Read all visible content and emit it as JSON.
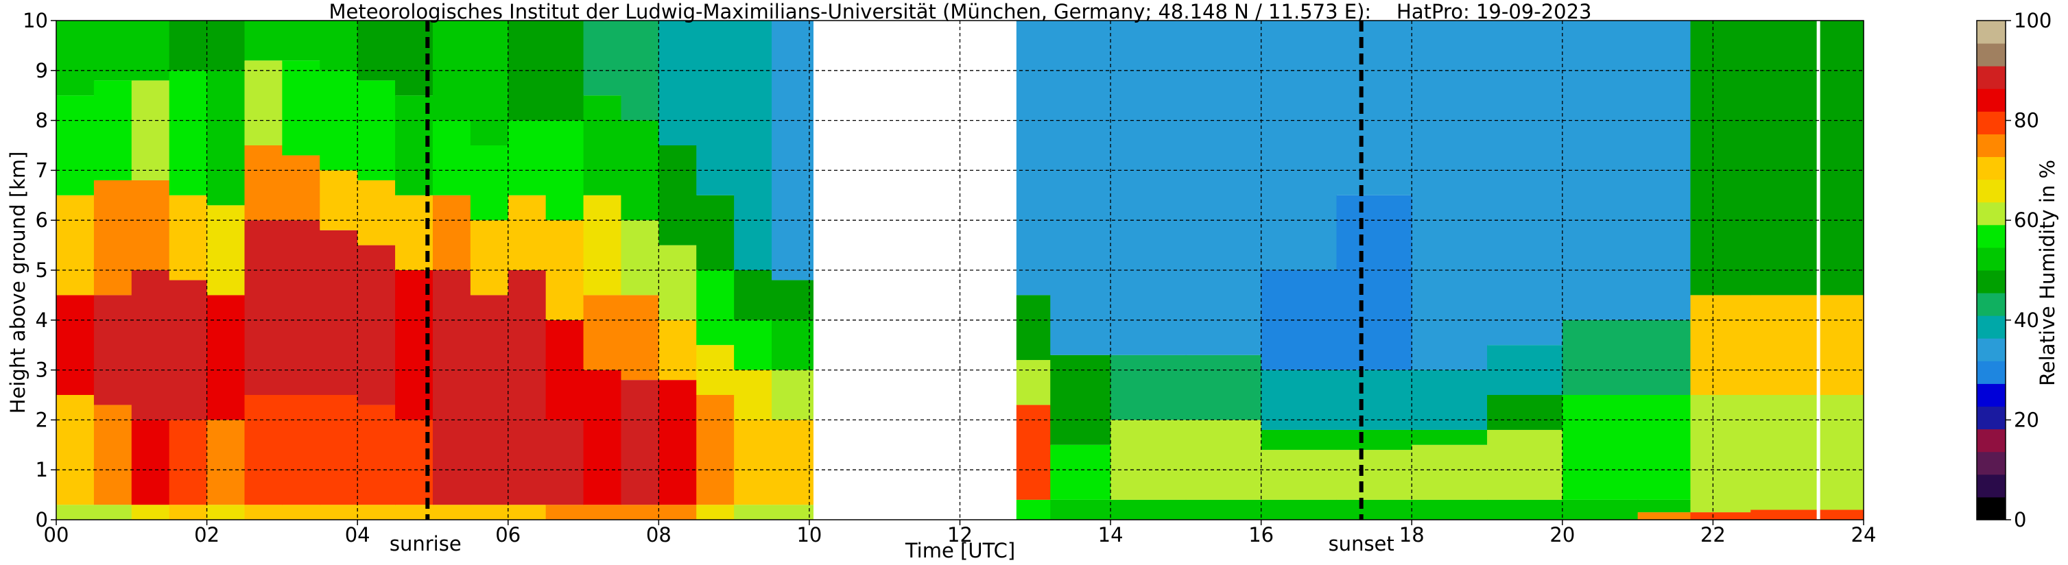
{
  "chart_data": {
    "type": "heatmap",
    "title": "Meteorologisches Institut der Ludwig-Maximilians-Universität (München, Germany; 48.148 N / 11.573 E):    HatPro: 19-09-2023",
    "xlabel": "Time [UTC]",
    "ylabel": "Height above ground [km]",
    "xlim": [
      0,
      24
    ],
    "ylim": [
      0,
      10
    ],
    "x_ticks": [
      0,
      2,
      4,
      6,
      8,
      10,
      12,
      14,
      16,
      18,
      20,
      22,
      24
    ],
    "x_tick_labels": [
      "00",
      "02",
      "04",
      "06",
      "08",
      "10",
      "12",
      "14",
      "16",
      "18",
      "20",
      "22",
      "24"
    ],
    "y_ticks": [
      0,
      1,
      2,
      3,
      4,
      5,
      6,
      7,
      8,
      9,
      10
    ],
    "y_tick_labels": [
      "0",
      "1",
      "2",
      "3",
      "4",
      "5",
      "6",
      "7",
      "8",
      "9",
      "10"
    ],
    "grid": true,
    "colorbar": {
      "label": "Relative Humidity in %",
      "range": [
        0,
        100
      ],
      "ticks": [
        0,
        20,
        40,
        60,
        80,
        100
      ],
      "tick_labels": [
        "0",
        "20",
        "40",
        "60",
        "80",
        "100"
      ],
      "colors": [
        "#000000",
        "#2a0b4a",
        "#5a1a52",
        "#901040",
        "#1a1aa0",
        "#0000d8",
        "#1e86e0",
        "#2a9cd8",
        "#00a8a8",
        "#10b060",
        "#00a000",
        "#00c800",
        "#00e800",
        "#b8ec30",
        "#f0e000",
        "#ffc800",
        "#ff8800",
        "#ff4000",
        "#e80000",
        "#d02020",
        "#a08060",
        "#c8b890"
      ]
    },
    "annotations": [
      {
        "label": "sunrise",
        "x": 4.93
      },
      {
        "label": "sunset",
        "x": 17.33
      }
    ],
    "missing_data": [
      [
        10.05,
        12.75
      ]
    ],
    "data_gaps": [
      23.4
    ],
    "time_columns": [
      {
        "t": 0.0,
        "layers": [
          [
            0,
            0.3,
            60
          ],
          [
            0.3,
            2.5,
            72
          ],
          [
            2.5,
            4.5,
            85
          ],
          [
            4.5,
            6.5,
            72
          ],
          [
            6.5,
            8.5,
            58
          ],
          [
            8.5,
            10,
            50
          ]
        ]
      },
      {
        "t": 0.5,
        "layers": [
          [
            0,
            0.3,
            62
          ],
          [
            0.3,
            2.3,
            76
          ],
          [
            2.3,
            4.5,
            88
          ],
          [
            4.5,
            6.8,
            74
          ],
          [
            6.8,
            8.8,
            58
          ],
          [
            8.8,
            10,
            50
          ]
        ]
      },
      {
        "t": 1.0,
        "layers": [
          [
            0,
            0.3,
            68
          ],
          [
            0.3,
            2.0,
            84
          ],
          [
            2.0,
            5.0,
            90
          ],
          [
            5.0,
            6.8,
            76
          ],
          [
            6.8,
            8.8,
            60
          ],
          [
            8.8,
            10,
            52
          ]
        ]
      },
      {
        "t": 1.5,
        "layers": [
          [
            0,
            0.3,
            72
          ],
          [
            0.3,
            2.0,
            80
          ],
          [
            2.0,
            4.8,
            88
          ],
          [
            4.8,
            6.5,
            72
          ],
          [
            6.5,
            9.0,
            56
          ],
          [
            9.0,
            10,
            48
          ]
        ]
      },
      {
        "t": 2.0,
        "layers": [
          [
            0,
            0.3,
            68
          ],
          [
            0.3,
            2.0,
            74
          ],
          [
            2.0,
            4.5,
            84
          ],
          [
            4.5,
            6.3,
            68
          ],
          [
            6.3,
            9.0,
            54
          ],
          [
            9.0,
            10,
            46
          ]
        ]
      },
      {
        "t": 2.5,
        "layers": [
          [
            0,
            0.3,
            70
          ],
          [
            0.3,
            2.5,
            78
          ],
          [
            2.5,
            6.0,
            90
          ],
          [
            6.0,
            7.5,
            76
          ],
          [
            7.5,
            9.2,
            60
          ],
          [
            9.2,
            10,
            50
          ]
        ]
      },
      {
        "t": 3.0,
        "layers": [
          [
            0,
            0.3,
            70
          ],
          [
            0.3,
            2.5,
            78
          ],
          [
            2.5,
            6.0,
            90
          ],
          [
            6.0,
            7.3,
            74
          ],
          [
            7.3,
            9.2,
            58
          ],
          [
            9.2,
            10,
            50
          ]
        ]
      },
      {
        "t": 3.5,
        "layers": [
          [
            0,
            0.3,
            70
          ],
          [
            0.3,
            2.5,
            78
          ],
          [
            2.5,
            5.8,
            89
          ],
          [
            5.8,
            7.0,
            72
          ],
          [
            7.0,
            9.0,
            58
          ],
          [
            9.0,
            10,
            50
          ]
        ]
      },
      {
        "t": 4.0,
        "layers": [
          [
            0,
            0.3,
            70
          ],
          [
            0.3,
            2.3,
            80
          ],
          [
            2.3,
            5.5,
            88
          ],
          [
            5.5,
            6.8,
            72
          ],
          [
            6.8,
            8.8,
            56
          ],
          [
            8.8,
            10,
            48
          ]
        ]
      },
      {
        "t": 4.5,
        "layers": [
          [
            0,
            0.3,
            70
          ],
          [
            0.3,
            2.0,
            80
          ],
          [
            2.0,
            5.0,
            86
          ],
          [
            5.0,
            6.5,
            70
          ],
          [
            6.5,
            8.5,
            54
          ],
          [
            8.5,
            10,
            46
          ]
        ]
      },
      {
        "t": 5.0,
        "layers": [
          [
            0,
            0.3,
            72
          ],
          [
            0.3,
            5.0,
            90
          ],
          [
            5.0,
            6.5,
            74
          ],
          [
            6.5,
            8.0,
            58
          ],
          [
            8.0,
            10,
            50
          ]
        ]
      },
      {
        "t": 5.5,
        "layers": [
          [
            0,
            0.3,
            72
          ],
          [
            0.3,
            4.5,
            89
          ],
          [
            4.5,
            6.0,
            72
          ],
          [
            6.0,
            7.5,
            58
          ],
          [
            7.5,
            10,
            50
          ]
        ]
      },
      {
        "t": 6.0,
        "layers": [
          [
            0,
            0.3,
            72
          ],
          [
            0.3,
            5.0,
            88
          ],
          [
            5.0,
            6.5,
            72
          ],
          [
            6.5,
            8.0,
            58
          ],
          [
            8.0,
            10,
            48
          ]
        ]
      },
      {
        "t": 6.5,
        "layers": [
          [
            0,
            0.3,
            74
          ],
          [
            0.3,
            2.0,
            88
          ],
          [
            2.0,
            4.0,
            84
          ],
          [
            4.0,
            6.0,
            70
          ],
          [
            6.0,
            8.0,
            56
          ],
          [
            8.0,
            10,
            48
          ]
        ]
      },
      {
        "t": 7.0,
        "layers": [
          [
            0,
            0.3,
            74
          ],
          [
            0.3,
            3.0,
            86
          ],
          [
            3.0,
            4.5,
            76
          ],
          [
            4.5,
            6.5,
            64
          ],
          [
            6.5,
            8.5,
            52
          ],
          [
            8.5,
            10,
            44
          ]
        ]
      },
      {
        "t": 7.5,
        "layers": [
          [
            0,
            0.3,
            74
          ],
          [
            0.3,
            2.8,
            87
          ],
          [
            2.8,
            4.5,
            74
          ],
          [
            4.5,
            6.0,
            62
          ],
          [
            6.0,
            8.0,
            50
          ],
          [
            8.0,
            10,
            42
          ]
        ]
      },
      {
        "t": 8.0,
        "layers": [
          [
            0,
            0.3,
            74
          ],
          [
            0.3,
            2.8,
            86
          ],
          [
            2.8,
            4.0,
            72
          ],
          [
            4.0,
            5.5,
            60
          ],
          [
            5.5,
            7.5,
            48
          ],
          [
            7.5,
            10,
            40
          ]
        ]
      },
      {
        "t": 8.5,
        "layers": [
          [
            0,
            0.3,
            66
          ],
          [
            0.3,
            2.5,
            74
          ],
          [
            2.5,
            3.5,
            66
          ],
          [
            3.5,
            5.0,
            56
          ],
          [
            5.0,
            6.5,
            46
          ],
          [
            6.5,
            10,
            38
          ]
        ]
      },
      {
        "t": 9.0,
        "layers": [
          [
            0,
            0.3,
            62
          ],
          [
            0.3,
            2.0,
            72
          ],
          [
            2.0,
            3.0,
            64
          ],
          [
            3.0,
            4.0,
            56
          ],
          [
            4.0,
            5.0,
            48
          ],
          [
            5.0,
            10,
            38
          ]
        ]
      },
      {
        "t": 9.5,
        "layers": [
          [
            0,
            0.3,
            60
          ],
          [
            0.3,
            2.0,
            70
          ],
          [
            2.0,
            3.0,
            62
          ],
          [
            3.0,
            4.0,
            54
          ],
          [
            4.0,
            4.8,
            46
          ],
          [
            4.8,
            10,
            36
          ]
        ]
      },
      {
        "t": 12.75,
        "layers": [
          [
            0,
            0.4,
            58
          ],
          [
            0.4,
            2.3,
            78
          ],
          [
            2.3,
            3.2,
            60
          ],
          [
            3.2,
            4.5,
            48
          ],
          [
            4.5,
            10,
            32
          ]
        ]
      },
      {
        "t": 13.2,
        "layers": [
          [
            0,
            0.4,
            52
          ],
          [
            0.4,
            1.5,
            58
          ],
          [
            1.5,
            3.3,
            46
          ],
          [
            3.3,
            10,
            32
          ]
        ]
      },
      {
        "t": 14.0,
        "layers": [
          [
            0,
            0.4,
            52
          ],
          [
            0.4,
            2.0,
            60
          ],
          [
            2.0,
            3.3,
            44
          ],
          [
            3.3,
            10,
            32
          ]
        ]
      },
      {
        "t": 15.0,
        "layers": [
          [
            0,
            0.4,
            52
          ],
          [
            0.4,
            2.0,
            60
          ],
          [
            2.0,
            3.3,
            44
          ],
          [
            3.3,
            10,
            32
          ]
        ]
      },
      {
        "t": 16.0,
        "layers": [
          [
            0,
            0.4,
            52
          ],
          [
            0.4,
            1.4,
            60
          ],
          [
            1.4,
            1.8,
            52
          ],
          [
            1.8,
            3.0,
            38
          ],
          [
            3.0,
            5.0,
            28
          ],
          [
            5.0,
            10,
            32
          ]
        ]
      },
      {
        "t": 17.0,
        "layers": [
          [
            0,
            0.4,
            52
          ],
          [
            0.4,
            1.4,
            60
          ],
          [
            1.4,
            1.8,
            52
          ],
          [
            1.8,
            3.0,
            38
          ],
          [
            3.0,
            6.5,
            28
          ],
          [
            6.5,
            10,
            34
          ]
        ]
      },
      {
        "t": 18.0,
        "layers": [
          [
            0,
            0.4,
            52
          ],
          [
            0.4,
            1.5,
            60
          ],
          [
            1.5,
            1.8,
            52
          ],
          [
            1.8,
            3.0,
            38
          ],
          [
            3.0,
            10,
            33
          ]
        ]
      },
      {
        "t": 19.0,
        "layers": [
          [
            0,
            0.4,
            52
          ],
          [
            0.4,
            1.8,
            60
          ],
          [
            1.8,
            2.5,
            46
          ],
          [
            2.5,
            3.5,
            38
          ],
          [
            3.5,
            10,
            33
          ]
        ]
      },
      {
        "t": 20.0,
        "layers": [
          [
            0,
            0.4,
            52
          ],
          [
            0.4,
            2.5,
            58
          ],
          [
            2.5,
            4.0,
            44
          ],
          [
            4.0,
            10,
            34
          ]
        ]
      },
      {
        "t": 21.0,
        "layers": [
          [
            0,
            0.15,
            75
          ],
          [
            0.15,
            0.4,
            52
          ],
          [
            0.4,
            2.5,
            58
          ],
          [
            2.5,
            4.0,
            44
          ],
          [
            4.0,
            10,
            34
          ]
        ]
      },
      {
        "t": 21.7,
        "layers": [
          [
            0,
            0.15,
            78
          ],
          [
            0.15,
            2.5,
            60
          ],
          [
            2.5,
            4.5,
            72
          ],
          [
            4.5,
            10,
            48
          ]
        ]
      },
      {
        "t": 22.5,
        "layers": [
          [
            0,
            0.2,
            78
          ],
          [
            0.2,
            2.5,
            62
          ],
          [
            2.5,
            4.5,
            72
          ],
          [
            4.5,
            10,
            48
          ]
        ]
      },
      {
        "t": 23.45,
        "layers": [
          [
            0,
            0.2,
            80
          ],
          [
            0.2,
            2.5,
            62
          ],
          [
            2.5,
            4.5,
            72
          ],
          [
            4.5,
            10,
            48
          ]
        ]
      }
    ]
  }
}
